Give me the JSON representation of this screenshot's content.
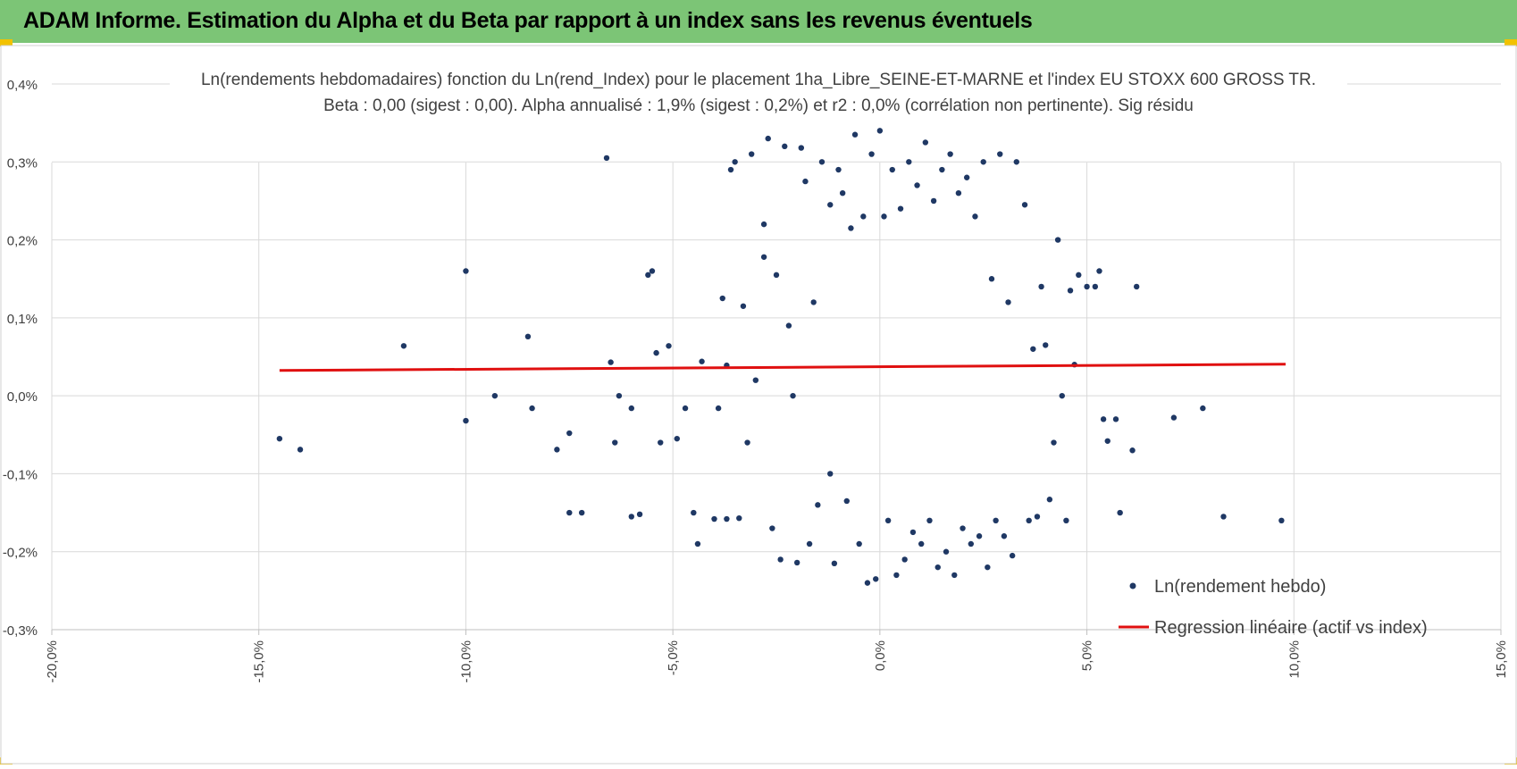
{
  "header": {
    "title": "ADAM Informe. Estimation du Alpha et du Beta par rapport à un index sans les revenus éventuels"
  },
  "colors": {
    "header_bg": "#7cc576",
    "points": "#1f3864",
    "regression": "#e01010",
    "accent": "#f2c200"
  },
  "chart_data": {
    "type": "scatter",
    "title_line1": "Ln(rendements hebdomadaires) fonction du Ln(rend_Index) pour le placement 1ha_Libre_SEINE-ET-MARNE  et l'index EU STOXX 600 GROSS TR.",
    "title_line2": "Beta : 0,00 (sigest : 0,00).  Alpha annualisé : 1,9% (sigest : 0,2%) et r2 : 0,0% (corrélation non pertinente). Sig résidu",
    "xlim": [
      -20,
      15
    ],
    "ylim": [
      -0.3,
      0.4
    ],
    "x_ticks": [
      -20,
      -15,
      -10,
      -5,
      0,
      5,
      10,
      15
    ],
    "x_tick_labels": [
      "-20,0%",
      "-15,0%",
      "-10,0%",
      "-5,0%",
      "0,0%",
      "5,0%",
      "10,0%",
      "15,0%"
    ],
    "y_ticks": [
      0.4,
      0.3,
      0.2,
      0.1,
      0.0,
      -0.1,
      -0.2,
      -0.3
    ],
    "y_tick_labels": [
      "0,4%",
      "0,3%",
      "0,2%",
      "0,1%",
      "0,0%",
      "-0,1%",
      "-0,2%",
      "-0,3%"
    ],
    "grid": true,
    "legend_position": "bottom-right",
    "series": [
      {
        "name": "Ln(rendement hebdo)",
        "kind": "points",
        "points": [
          [
            -14.5,
            -0.055
          ],
          [
            -14.0,
            -0.069
          ],
          [
            -11.5,
            0.064
          ],
          [
            -10.0,
            0.16
          ],
          [
            -10.0,
            -0.032
          ],
          [
            -9.3,
            0.0
          ],
          [
            -8.5,
            0.076
          ],
          [
            -8.4,
            -0.016
          ],
          [
            -7.8,
            -0.069
          ],
          [
            -7.5,
            -0.15
          ],
          [
            -7.5,
            -0.048
          ],
          [
            -7.2,
            -0.15
          ],
          [
            -6.6,
            0.305
          ],
          [
            -6.5,
            0.043
          ],
          [
            -6.4,
            -0.06
          ],
          [
            -6.3,
            0.0
          ],
          [
            -6.0,
            -0.155
          ],
          [
            -6.0,
            -0.016
          ],
          [
            -5.8,
            -0.152
          ],
          [
            -5.6,
            0.155
          ],
          [
            -5.5,
            0.16
          ],
          [
            -5.4,
            0.055
          ],
          [
            -5.3,
            -0.06
          ],
          [
            -5.1,
            0.064
          ],
          [
            -4.9,
            -0.055
          ],
          [
            -4.7,
            -0.016
          ],
          [
            -4.5,
            -0.15
          ],
          [
            -4.4,
            -0.19
          ],
          [
            -4.3,
            0.044
          ],
          [
            -4.0,
            -0.158
          ],
          [
            -3.9,
            -0.016
          ],
          [
            -3.8,
            0.125
          ],
          [
            -3.7,
            0.039
          ],
          [
            -3.7,
            -0.158
          ],
          [
            -3.6,
            0.29
          ],
          [
            -3.5,
            0.3
          ],
          [
            -3.4,
            -0.157
          ],
          [
            -3.3,
            0.115
          ],
          [
            -3.2,
            -0.06
          ],
          [
            -3.1,
            0.31
          ],
          [
            -3.0,
            0.02
          ],
          [
            -2.8,
            0.178
          ],
          [
            -2.8,
            0.22
          ],
          [
            -2.7,
            0.33
          ],
          [
            -2.6,
            -0.17
          ],
          [
            -2.5,
            0.155
          ],
          [
            -2.4,
            -0.21
          ],
          [
            -2.3,
            0.32
          ],
          [
            -2.2,
            0.09
          ],
          [
            -2.1,
            0.0
          ],
          [
            -2.0,
            -0.214
          ],
          [
            -1.9,
            0.318
          ],
          [
            -1.8,
            0.275
          ],
          [
            -1.7,
            -0.19
          ],
          [
            -1.6,
            0.12
          ],
          [
            -1.5,
            -0.14
          ],
          [
            -1.4,
            0.3
          ],
          [
            -1.2,
            0.245
          ],
          [
            -1.2,
            -0.1
          ],
          [
            -1.1,
            -0.215
          ],
          [
            -1.0,
            0.29
          ],
          [
            -0.9,
            0.26
          ],
          [
            -0.8,
            -0.135
          ],
          [
            -0.7,
            0.215
          ],
          [
            -0.6,
            0.335
          ],
          [
            -0.5,
            -0.19
          ],
          [
            -0.4,
            0.23
          ],
          [
            -0.3,
            -0.24
          ],
          [
            -0.2,
            0.31
          ],
          [
            -0.1,
            -0.235
          ],
          [
            0.0,
            0.34
          ],
          [
            0.1,
            0.23
          ],
          [
            0.2,
            -0.16
          ],
          [
            0.3,
            0.29
          ],
          [
            0.4,
            -0.23
          ],
          [
            0.5,
            0.24
          ],
          [
            0.6,
            -0.21
          ],
          [
            0.7,
            0.3
          ],
          [
            0.8,
            -0.175
          ],
          [
            0.9,
            0.27
          ],
          [
            1.0,
            -0.19
          ],
          [
            1.1,
            0.325
          ],
          [
            1.2,
            -0.16
          ],
          [
            1.3,
            0.25
          ],
          [
            1.4,
            -0.22
          ],
          [
            1.5,
            0.29
          ],
          [
            1.6,
            -0.2
          ],
          [
            1.7,
            0.31
          ],
          [
            1.8,
            -0.23
          ],
          [
            1.9,
            0.26
          ],
          [
            2.0,
            -0.17
          ],
          [
            2.1,
            0.28
          ],
          [
            2.2,
            -0.19
          ],
          [
            2.3,
            0.23
          ],
          [
            2.4,
            -0.18
          ],
          [
            2.5,
            0.3
          ],
          [
            2.6,
            -0.22
          ],
          [
            2.7,
            0.15
          ],
          [
            2.8,
            -0.16
          ],
          [
            2.9,
            0.31
          ],
          [
            3.0,
            -0.18
          ],
          [
            3.1,
            0.12
          ],
          [
            3.2,
            -0.205
          ],
          [
            3.3,
            0.3
          ],
          [
            3.5,
            0.245
          ],
          [
            3.6,
            -0.16
          ],
          [
            3.7,
            0.06
          ],
          [
            3.8,
            -0.155
          ],
          [
            3.9,
            0.14
          ],
          [
            4.0,
            0.065
          ],
          [
            4.1,
            -0.133
          ],
          [
            4.2,
            -0.06
          ],
          [
            4.3,
            0.2
          ],
          [
            4.4,
            0.0
          ],
          [
            4.5,
            -0.16
          ],
          [
            4.6,
            0.135
          ],
          [
            4.7,
            0.04
          ],
          [
            4.8,
            0.155
          ],
          [
            5.0,
            0.14
          ],
          [
            5.2,
            0.14
          ],
          [
            5.3,
            0.16
          ],
          [
            5.4,
            -0.03
          ],
          [
            5.5,
            -0.058
          ],
          [
            5.7,
            -0.03
          ],
          [
            5.8,
            -0.15
          ],
          [
            6.1,
            -0.07
          ],
          [
            6.2,
            0.14
          ],
          [
            7.1,
            -0.028
          ],
          [
            7.8,
            -0.016
          ],
          [
            8.3,
            -0.155
          ],
          [
            9.7,
            -0.16
          ]
        ]
      },
      {
        "name": "Regression linéaire (actif vs index)",
        "kind": "line",
        "x": [
          -14.5,
          9.8
        ],
        "y": [
          0.0325,
          0.0405
        ]
      }
    ]
  }
}
